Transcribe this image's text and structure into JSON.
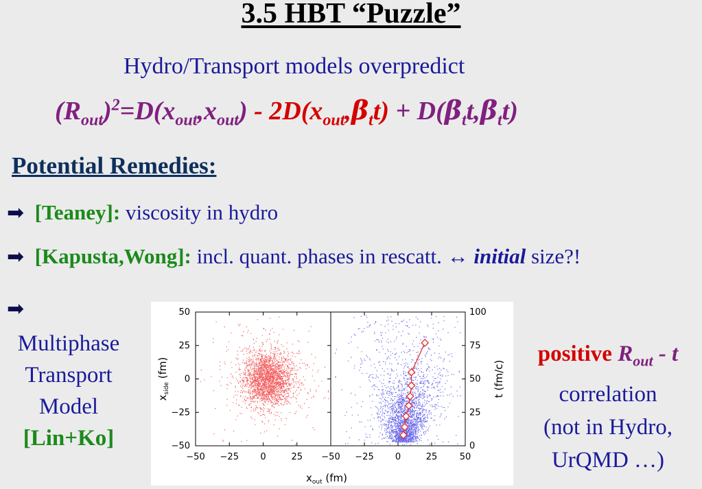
{
  "slide": {
    "title": "3.5 HBT “Puzzle”",
    "subtitle": "Hydro/Transport models overpredict",
    "formula": {
      "p1": "(R",
      "p1_sub": "out",
      "p1_close": ")",
      "p1_sup": "2",
      "p2": "=D(x",
      "p2_sub1": "out",
      "p2_mid": ",x",
      "p2_sub2": "out",
      "p2_close": ")",
      "red_p1": " - 2D(x",
      "red_sub": "out",
      "red_mid": ",",
      "beta": "β",
      "t_sub": "t",
      "red_close": "t)",
      "p3": " + D(",
      "p3_beta1": "β",
      "p3_sub1": "t",
      "p3_mid": "t,",
      "p3_beta2": "β",
      "p3_sub2": "t",
      "p3_close": "t)"
    },
    "remedies_heading": "Potential Remedies:",
    "remedies": [
      {
        "cite": "[Teaney]:",
        "text": " viscosity in hydro"
      },
      {
        "cite": "[Kapusta,Wong]:",
        "text": " incl. quant. phases in rescatt. ↔ ",
        "emphasis": "initial",
        "tail": " size?!"
      }
    ],
    "model": {
      "line1": "Multiphase",
      "line2": "Transport",
      "line3": "Model",
      "cite": "[Lin+Ko]"
    },
    "correlation": {
      "positive": "positive",
      "r": "R",
      "r_sub": "out",
      "dash_t": " - t",
      "line2": "correlation",
      "line3": "(not in Hydro,",
      "line4": "UrQMD …)"
    }
  },
  "chart_data": [
    {
      "type": "scatter",
      "xlabel": "x",
      "xlabel_sub": "out",
      "xlabel_unit": " (fm)",
      "ylabel": "x",
      "ylabel_sub": "side",
      "ylabel_unit": " (fm)",
      "xlim": [
        -50,
        50
      ],
      "ylim": [
        -50,
        50
      ],
      "xticks": [
        "−50",
        "−25",
        "0",
        "25"
      ],
      "yticks": [
        "50",
        "25",
        "0",
        "−25",
        "−50"
      ],
      "points": "red dense cloud centered near (3, 0), spread ≈ 10 fm",
      "color": "#f04040"
    },
    {
      "type": "scatter",
      "xlim": [
        -50,
        50
      ],
      "ylim": [
        0,
        100
      ],
      "xticks": [
        "−50",
        "−25",
        "0",
        "25",
        "50"
      ],
      "yticks_right": [
        "100",
        "75",
        "50",
        "25",
        "0"
      ],
      "ylabel_right": "t (fm/c)",
      "color": "#3f3fe6",
      "mean_line": {
        "color": "#e03030",
        "x": [
          4,
          5,
          6,
          8,
          9,
          10,
          10,
          20
        ],
        "y": [
          8,
          14,
          22,
          30,
          37,
          45,
          55,
          77
        ]
      }
    }
  ]
}
